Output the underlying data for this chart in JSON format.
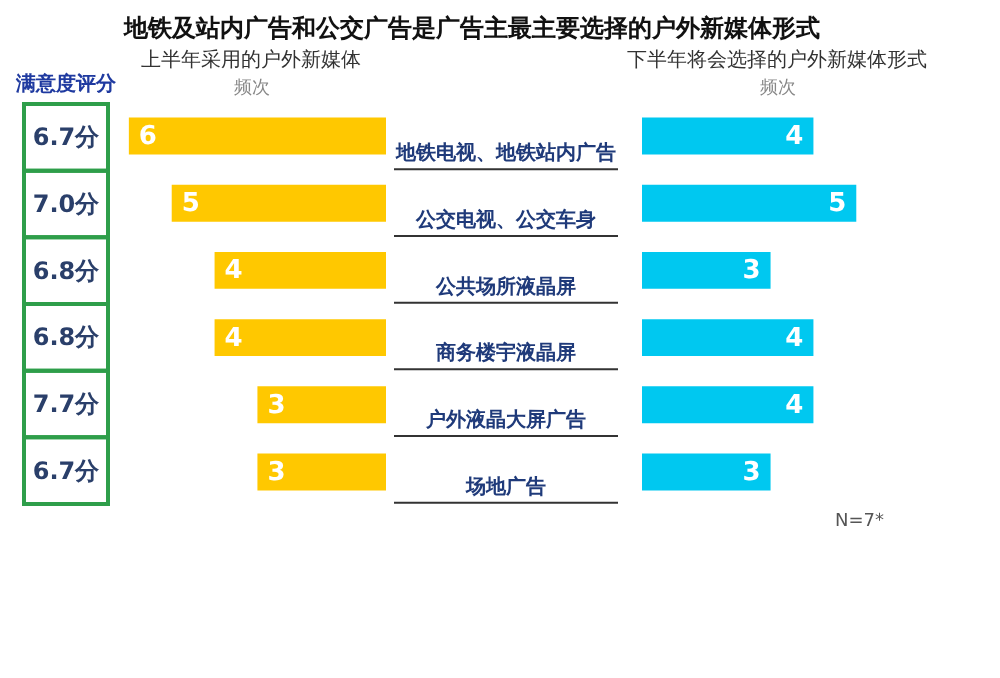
{
  "chart_data": [
    {
      "type": "bar",
      "orientation": "horizontal",
      "title": "地铁及站内广告和公交广告是广告主最主要选择的户外新媒体形式",
      "legend_title": "满意度评分",
      "xlabel": "频次",
      "categories": [
        "地铁电视、地铁站内广告",
        "公交电视、公交车身",
        "公共场所液晶屏",
        "商务楼宇液晶屏",
        "户外液晶大屏广告",
        "场地广告"
      ],
      "series": [
        {
          "name": "上半年采用的户外新媒体",
          "color": "#ffc800",
          "values": [
            6,
            5,
            4,
            4,
            3,
            3
          ]
        }
      ],
      "data_labels": true,
      "grid": false,
      "legend": "top",
      "annotations": [
        "6.7分",
        "7.0分",
        "6.8分",
        "6.8分",
        "7.7分",
        "6.7分"
      ]
    },
    {
      "type": "bar",
      "orientation": "horizontal",
      "xlabel": "频次",
      "categories": [
        null,
        null,
        null,
        null,
        null,
        null
      ],
      "series": [
        {
          "name": "下半年将会选择的户外新媒体形式",
          "color": "#00c8f0",
          "values": [
            4,
            5,
            3,
            4,
            4,
            3
          ]
        }
      ],
      "data_labels": true,
      "grid": false,
      "legend": "top",
      "annotations": [
        "N=7*"
      ]
    }
  ]
}
